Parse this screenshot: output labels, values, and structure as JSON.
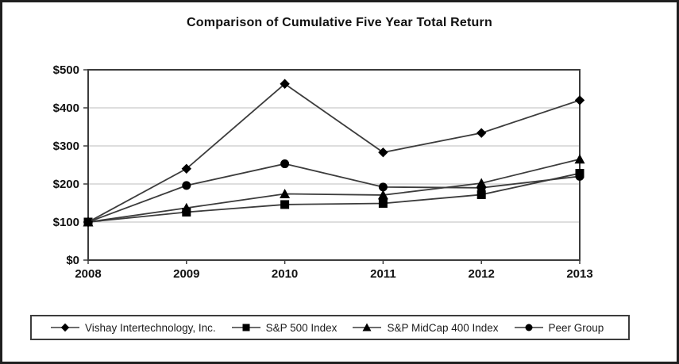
{
  "chart_data": {
    "type": "line",
    "title": "Comparison of Cumulative Five Year Total Return",
    "x": [
      2008,
      2009,
      2010,
      2011,
      2012,
      2013
    ],
    "xtick_labels": [
      "2008",
      "2009",
      "2010",
      "2011",
      "2012",
      "2013"
    ],
    "yticks": [
      0,
      100,
      200,
      300,
      400,
      500
    ],
    "ytick_labels": [
      "$0",
      "$100",
      "$200",
      "$300",
      "$400",
      "$500"
    ],
    "ylim": [
      0,
      500
    ],
    "grid": "horizontal",
    "legend_position": "bottom",
    "series": [
      {
        "name": "Vishay Intertechnology, Inc.",
        "marker": "diamond",
        "values": [
          100,
          240,
          463,
          283,
          334,
          420
        ]
      },
      {
        "name": "S&P 500 Index",
        "marker": "square",
        "values": [
          100,
          126,
          146,
          149,
          172,
          228
        ]
      },
      {
        "name": "S&P MidCap 400 Index",
        "marker": "triangle",
        "values": [
          100,
          137,
          174,
          171,
          202,
          265
        ]
      },
      {
        "name": "Peer Group",
        "marker": "circle",
        "values": [
          100,
          196,
          253,
          192,
          190,
          220
        ]
      }
    ],
    "draw_order": [
      3,
      2,
      1,
      0
    ],
    "colors": {
      "line": "#3c3c3c",
      "marker": "#000000",
      "grid": "#c9c9c9",
      "axis": "#3c3c3c",
      "text": "#111111",
      "frame_border": "#1f1f1f",
      "background": "#ffffff"
    }
  }
}
